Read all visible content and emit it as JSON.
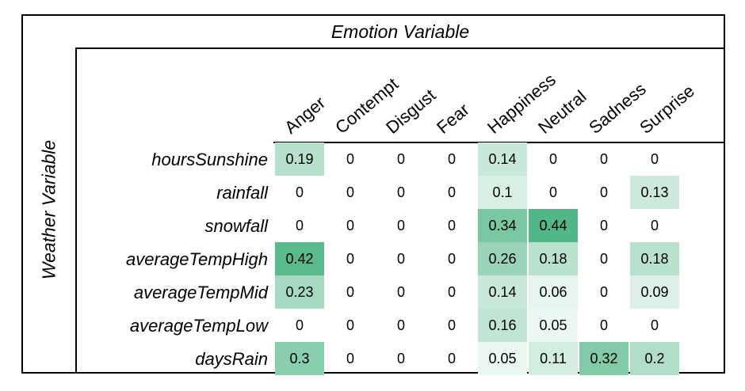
{
  "chart_data": {
    "type": "heatmap",
    "column_title": "Emotion Variable",
    "row_title": "Weather Variable",
    "columns": [
      "Anger",
      "Contempt",
      "Disgust",
      "Fear",
      "Happiness",
      "Neutral",
      "Sadness",
      "Surprise"
    ],
    "rows": [
      "hoursSunshine",
      "rainfall",
      "snowfall",
      "averageTempHigh",
      "averageTempMid",
      "averageTempLow",
      "daysRain"
    ],
    "values": [
      [
        0.19,
        0,
        0,
        0,
        0.14,
        0,
        0,
        0
      ],
      [
        0,
        0,
        0,
        0,
        0.1,
        0,
        0,
        0.13
      ],
      [
        0,
        0,
        0,
        0,
        0.34,
        0.44,
        0,
        0
      ],
      [
        0.42,
        0,
        0,
        0,
        0.26,
        0.18,
        0,
        0.18
      ],
      [
        0.23,
        0,
        0,
        0,
        0.14,
        0.06,
        0,
        0.09
      ],
      [
        0,
        0,
        0,
        0,
        0.16,
        0.05,
        0,
        0
      ],
      [
        0.3,
        0,
        0,
        0,
        0.05,
        0.11,
        0.32,
        0.2
      ]
    ],
    "value_range": [
      0,
      0.44
    ],
    "color_low": "#ffffff",
    "color_high": "#52b788"
  }
}
